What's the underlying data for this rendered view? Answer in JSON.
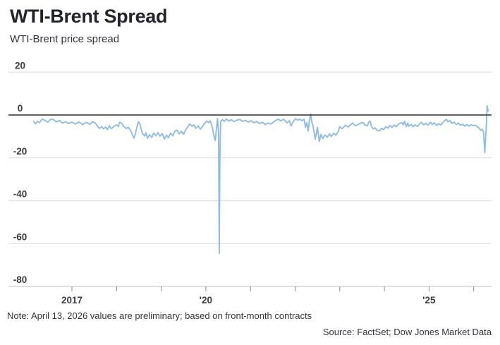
{
  "header": {
    "title": "WTI-Brent Spread",
    "subtitle": "WTI-Brent price spread"
  },
  "footer": {
    "note": "Note: April 13, 2026 values are preliminary; based on front-month contracts",
    "source": "Source: FactSet; Dow Jones Market Data"
  },
  "chart_data": {
    "type": "line",
    "title": "WTI-Brent Spread",
    "series_name": "WTI-Brent price spread",
    "line_color": "#8fbce6",
    "grid_color": "#dcdcdc",
    "axis_line_color": "#c2c2c2",
    "zero_line_color": "#2f2f2f",
    "tick_color": "#8a8a8a",
    "label_color": "#3b3b43",
    "ylim": [
      -80,
      20
    ],
    "x_range": [
      2016.05,
      2026.45
    ],
    "grid": true,
    "legend_position": "none",
    "y_ticks": [
      {
        "value": 20,
        "label": "20"
      },
      {
        "value": 0,
        "label": "0"
      },
      {
        "value": -20,
        "label": "-20"
      },
      {
        "value": -40,
        "label": "-40"
      },
      {
        "value": -60,
        "label": "-60"
      },
      {
        "value": -80,
        "label": "-80"
      }
    ],
    "x_ticks": [
      {
        "year": 2017,
        "label": "2017"
      },
      {
        "year": 2018,
        "label": ""
      },
      {
        "year": 2019,
        "label": ""
      },
      {
        "year": 2020,
        "label": "'20"
      },
      {
        "year": 2021,
        "label": ""
      },
      {
        "year": 2022,
        "label": ""
      },
      {
        "year": 2023,
        "label": ""
      },
      {
        "year": 2024,
        "label": ""
      },
      {
        "year": 2025,
        "label": "'25"
      },
      {
        "year": 2026,
        "label": ""
      }
    ],
    "points": [
      [
        2016.14,
        -2.9
      ],
      [
        2016.18,
        -4.2
      ],
      [
        2016.22,
        -3.0
      ],
      [
        2016.27,
        -3.6
      ],
      [
        2016.34,
        -1.8
      ],
      [
        2016.4,
        -2.6
      ],
      [
        2016.46,
        -3.3
      ],
      [
        2016.51,
        -2.2
      ],
      [
        2016.57,
        -1.9
      ],
      [
        2016.65,
        -3.2
      ],
      [
        2016.72,
        -2.6
      ],
      [
        2016.79,
        -3.8
      ],
      [
        2016.86,
        -3.1
      ],
      [
        2016.92,
        -4.0
      ],
      [
        2017.0,
        -3.3
      ],
      [
        2017.08,
        -4.3
      ],
      [
        2017.16,
        -3.2
      ],
      [
        2017.24,
        -4.5
      ],
      [
        2017.32,
        -3.4
      ],
      [
        2017.4,
        -4.4
      ],
      [
        2017.46,
        -3.2
      ],
      [
        2017.52,
        -3.6
      ],
      [
        2017.57,
        -5.2
      ],
      [
        2017.62,
        -6.3
      ],
      [
        2017.66,
        -5.4
      ],
      [
        2017.71,
        -6.5
      ],
      [
        2017.76,
        -5.6
      ],
      [
        2017.79,
        -6.8
      ],
      [
        2017.84,
        -5.0
      ],
      [
        2017.88,
        -6.4
      ],
      [
        2017.93,
        -5.5
      ],
      [
        2018.0,
        -4.6
      ],
      [
        2018.04,
        -5.4
      ],
      [
        2018.07,
        -3.3
      ],
      [
        2018.12,
        -4.0
      ],
      [
        2018.17,
        -5.5
      ],
      [
        2018.22,
        -6.3
      ],
      [
        2018.26,
        -5.7
      ],
      [
        2018.31,
        -7.2
      ],
      [
        2018.36,
        -9.5
      ],
      [
        2018.39,
        -10.8
      ],
      [
        2018.42,
        -9.0
      ],
      [
        2018.45,
        -6.0
      ],
      [
        2018.49,
        -3.2
      ],
      [
        2018.52,
        -4.0
      ],
      [
        2018.55,
        -6.5
      ],
      [
        2018.58,
        -8.6
      ],
      [
        2018.63,
        -9.8
      ],
      [
        2018.66,
        -8.3
      ],
      [
        2018.69,
        -10.9
      ],
      [
        2018.74,
        -9.2
      ],
      [
        2018.79,
        -10.5
      ],
      [
        2018.83,
        -8.4
      ],
      [
        2018.88,
        -9.6
      ],
      [
        2018.93,
        -8.2
      ],
      [
        2018.97,
        -9.9
      ],
      [
        2019.02,
        -8.7
      ],
      [
        2019.07,
        -11.2
      ],
      [
        2019.12,
        -9.4
      ],
      [
        2019.16,
        -10.6
      ],
      [
        2019.21,
        -8.5
      ],
      [
        2019.26,
        -9.7
      ],
      [
        2019.31,
        -7.4
      ],
      [
        2019.35,
        -7.0
      ],
      [
        2019.4,
        -8.8
      ],
      [
        2019.45,
        -7.6
      ],
      [
        2019.5,
        -9.0
      ],
      [
        2019.54,
        -7.2
      ],
      [
        2019.59,
        -5.6
      ],
      [
        2019.64,
        -4.2
      ],
      [
        2019.69,
        -5.3
      ],
      [
        2019.73,
        -4.6
      ],
      [
        2019.78,
        -6.2
      ],
      [
        2019.83,
        -5.1
      ],
      [
        2019.88,
        -6.6
      ],
      [
        2019.92,
        -5.4
      ],
      [
        2019.97,
        -4.0
      ],
      [
        2020.02,
        -2.8
      ],
      [
        2020.06,
        -3.6
      ],
      [
        2020.1,
        -2.7
      ],
      [
        2020.14,
        -5.5
      ],
      [
        2020.18,
        -9.5
      ],
      [
        2020.21,
        -12.0
      ],
      [
        2020.24,
        -6.0
      ],
      [
        2020.26,
        -1.6
      ],
      [
        2020.285,
        -8.0
      ],
      [
        2020.3,
        -64.5
      ],
      [
        2020.315,
        -20.0
      ],
      [
        2020.33,
        -3.0
      ],
      [
        2020.37,
        -2.1
      ],
      [
        2020.41,
        -3.0
      ],
      [
        2020.46,
        -1.8
      ],
      [
        2020.51,
        -2.8
      ],
      [
        2020.57,
        -2.2
      ],
      [
        2020.63,
        -3.1
      ],
      [
        2020.7,
        -2.4
      ],
      [
        2020.76,
        -2.0
      ],
      [
        2020.82,
        -3.0
      ],
      [
        2020.89,
        -2.5
      ],
      [
        2020.95,
        -3.3
      ],
      [
        2021.01,
        -2.7
      ],
      [
        2021.08,
        -3.6
      ],
      [
        2021.14,
        -3.0
      ],
      [
        2021.2,
        -4.0
      ],
      [
        2021.27,
        -3.4
      ],
      [
        2021.33,
        -4.5
      ],
      [
        2021.39,
        -3.8
      ],
      [
        2021.46,
        -4.2
      ],
      [
        2021.52,
        -3.2
      ],
      [
        2021.58,
        -2.4
      ],
      [
        2021.63,
        -1.9
      ],
      [
        2021.68,
        -2.8
      ],
      [
        2021.74,
        -1.9
      ],
      [
        2021.79,
        -3.0
      ],
      [
        2021.82,
        -3.7
      ],
      [
        2021.87,
        -2.6
      ],
      [
        2021.91,
        -5.1
      ],
      [
        2021.96,
        -3.0
      ],
      [
        2022.01,
        -1.7
      ],
      [
        2022.06,
        -2.4
      ],
      [
        2022.1,
        -1.9
      ],
      [
        2022.15,
        -2.6
      ],
      [
        2022.2,
        -2.0
      ],
      [
        2022.23,
        -5.8
      ],
      [
        2022.26,
        -3.5
      ],
      [
        2022.29,
        -7.5
      ],
      [
        2022.32,
        -2.5
      ],
      [
        2022.35,
        0.4
      ],
      [
        2022.37,
        -3.0
      ],
      [
        2022.4,
        -5.0
      ],
      [
        2022.45,
        -11.3
      ],
      [
        2022.5,
        -5.7
      ],
      [
        2022.54,
        -12.3
      ],
      [
        2022.58,
        -9.0
      ],
      [
        2022.62,
        -11.0
      ],
      [
        2022.67,
        -9.3
      ],
      [
        2022.72,
        -10.4
      ],
      [
        2022.77,
        -8.8
      ],
      [
        2022.81,
        -10.0
      ],
      [
        2022.86,
        -8.5
      ],
      [
        2022.91,
        -9.4
      ],
      [
        2022.96,
        -8.0
      ],
      [
        2023.0,
        -5.5
      ],
      [
        2023.05,
        -6.4
      ],
      [
        2023.13,
        -4.8
      ],
      [
        2023.19,
        -5.6
      ],
      [
        2023.26,
        -4.2
      ],
      [
        2023.29,
        -3.8
      ],
      [
        2023.35,
        -5.0
      ],
      [
        2023.41,
        -4.4
      ],
      [
        2023.48,
        -3.6
      ],
      [
        2023.52,
        -3.5
      ],
      [
        2023.57,
        -4.8
      ],
      [
        2023.62,
        -5.0
      ],
      [
        2023.65,
        -3.4
      ],
      [
        2023.68,
        -2.8
      ],
      [
        2023.71,
        -5.3
      ],
      [
        2023.75,
        -6.5
      ],
      [
        2023.79,
        -6.0
      ],
      [
        2023.84,
        -7.2
      ],
      [
        2023.89,
        -7.4
      ],
      [
        2023.94,
        -6.2
      ],
      [
        2023.98,
        -6.8
      ],
      [
        2024.03,
        -5.5
      ],
      [
        2024.08,
        -6.1
      ],
      [
        2024.12,
        -4.9
      ],
      [
        2024.17,
        -5.8
      ],
      [
        2024.22,
        -4.7
      ],
      [
        2024.27,
        -5.4
      ],
      [
        2024.31,
        -4.3
      ],
      [
        2024.36,
        -3.8
      ],
      [
        2024.39,
        -3.6
      ],
      [
        2024.42,
        -4.6
      ],
      [
        2024.45,
        -2.9
      ],
      [
        2024.49,
        -5.4
      ],
      [
        2024.52,
        -3.9
      ],
      [
        2024.55,
        -5.2
      ],
      [
        2024.6,
        -4.4
      ],
      [
        2024.64,
        -5.5
      ],
      [
        2024.69,
        -4.6
      ],
      [
        2024.74,
        -5.3
      ],
      [
        2024.79,
        -4.1
      ],
      [
        2024.83,
        -3.4
      ],
      [
        2024.88,
        -4.6
      ],
      [
        2024.93,
        -3.9
      ],
      [
        2024.98,
        -4.8
      ],
      [
        2025.03,
        -3.3
      ],
      [
        2025.07,
        -4.4
      ],
      [
        2025.12,
        -3.7
      ],
      [
        2025.17,
        -4.9
      ],
      [
        2025.21,
        -4.0
      ],
      [
        2025.26,
        -4.7
      ],
      [
        2025.31,
        -3.5
      ],
      [
        2025.36,
        -2.4
      ],
      [
        2025.39,
        -2.0
      ],
      [
        2025.42,
        -3.1
      ],
      [
        2025.47,
        -2.6
      ],
      [
        2025.51,
        -3.9
      ],
      [
        2025.56,
        -3.3
      ],
      [
        2025.61,
        -4.4
      ],
      [
        2025.66,
        -3.8
      ],
      [
        2025.7,
        -4.8
      ],
      [
        2025.75,
        -4.3
      ],
      [
        2025.8,
        -5.1
      ],
      [
        2025.85,
        -4.5
      ],
      [
        2025.89,
        -5.2
      ],
      [
        2025.94,
        -4.6
      ],
      [
        2025.99,
        -5.0
      ],
      [
        2026.03,
        -4.7
      ],
      [
        2026.08,
        -5.4
      ],
      [
        2026.13,
        -6.3
      ],
      [
        2026.16,
        -7.2
      ],
      [
        2026.19,
        -6.6
      ],
      [
        2026.22,
        -8.0
      ],
      [
        2026.25,
        -17.5
      ],
      [
        2026.27,
        -9.0
      ],
      [
        2026.285,
        -5.0
      ],
      [
        2026.3,
        4.3
      ],
      [
        2026.32,
        1.8
      ]
    ]
  }
}
